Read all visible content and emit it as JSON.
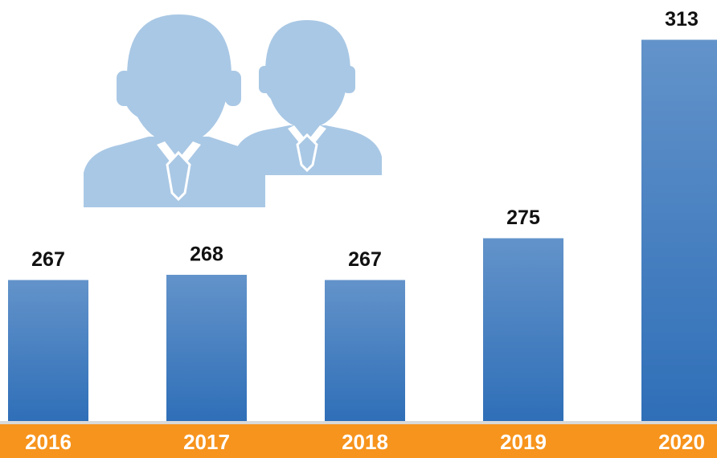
{
  "chart_data": {
    "type": "bar",
    "categories": [
      "2016",
      "2017",
      "2018",
      "2019",
      "2020"
    ],
    "values": [
      267,
      268,
      267,
      275,
      313
    ],
    "color": "#2f6fb8",
    "ylim": [
      240,
      320
    ]
  }
}
